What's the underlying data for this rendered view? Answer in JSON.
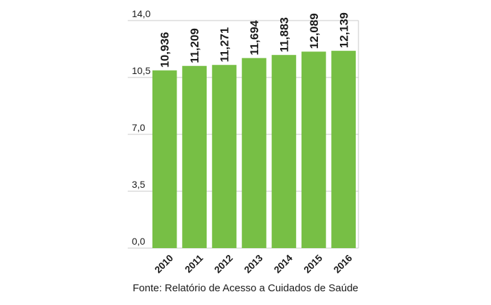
{
  "chart_data": {
    "type": "bar",
    "categories": [
      "2010",
      "2011",
      "2012",
      "2013",
      "2014",
      "2015",
      "2016"
    ],
    "values": [
      10.936,
      11.209,
      11.271,
      11.694,
      11.883,
      12.089,
      12.139
    ],
    "value_labels": [
      "10,936",
      "11,209",
      "11,271",
      "11,694",
      "11,883",
      "12,089",
      "12,139"
    ],
    "yticks": [
      0,
      3.5,
      7,
      10.5,
      14
    ],
    "ytick_labels": [
      "0,0",
      "3,5",
      "7,0",
      "10,5",
      "14,0"
    ],
    "ylim": [
      0,
      14
    ],
    "title": "",
    "xlabel": "",
    "ylabel": "",
    "grid": true,
    "bar_color": "#77bf45",
    "grid_color": "#c8c8c8"
  },
  "source": "Fonte: Relatório de Acesso a Cuidados de Saúde"
}
